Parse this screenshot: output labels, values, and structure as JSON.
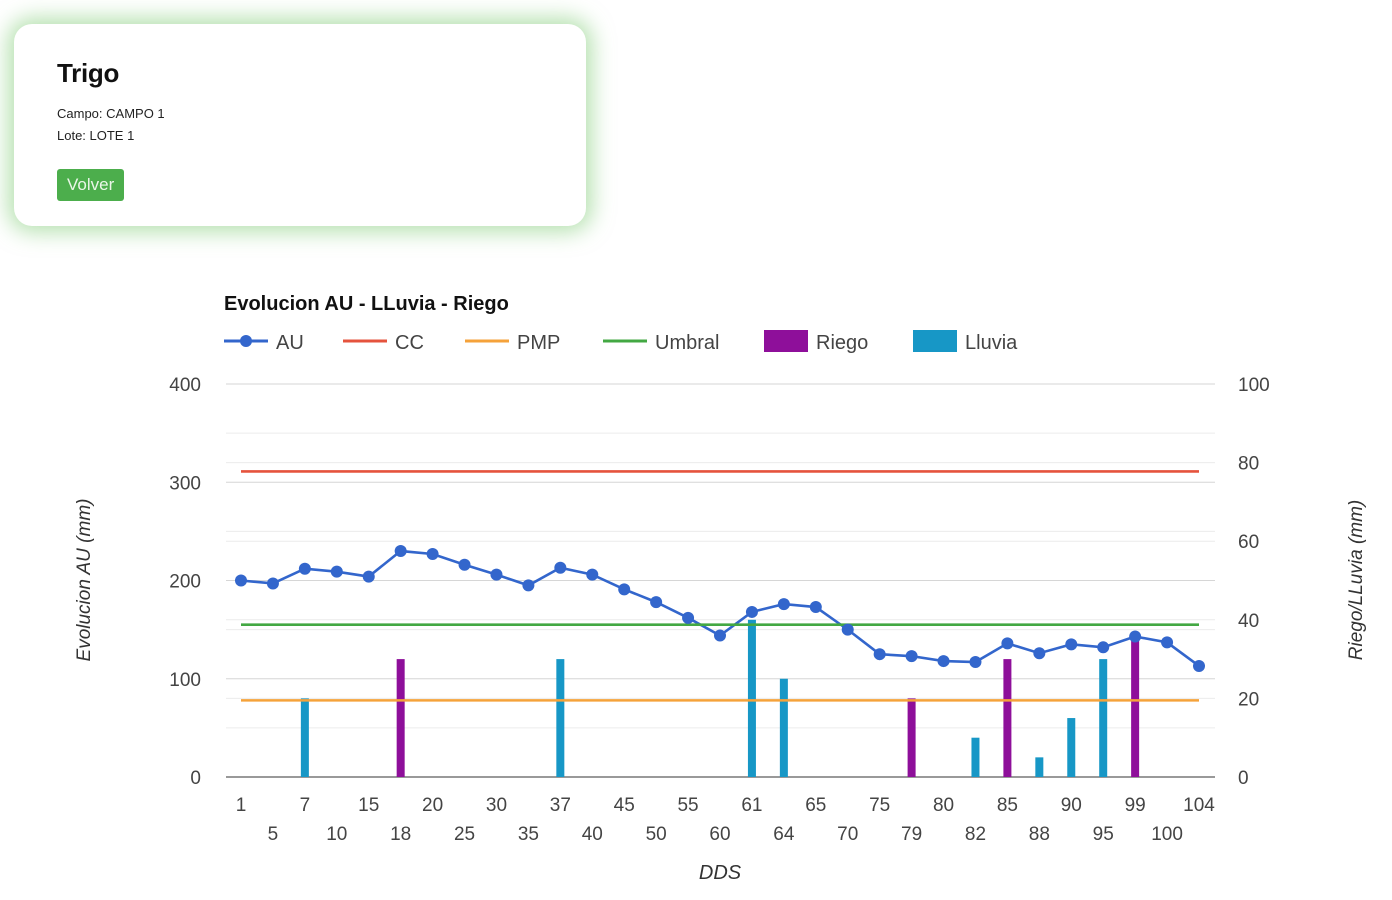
{
  "card": {
    "title": "Trigo",
    "campo": "Campo: CAMPO 1",
    "lote": "Lote: LOTE 1",
    "button_label": "Volver"
  },
  "chart_data": {
    "type": "line",
    "title": "Evolucion AU - LLuvia - Riego",
    "xlabel": "DDS",
    "ylabel_left": "Evolucion AU (mm)",
    "ylabel_right": "Riego/LLuvia (mm)",
    "ylim_left": [
      0,
      400
    ],
    "ylim_right": [
      0,
      100
    ],
    "yticks_left": [
      0,
      100,
      200,
      300,
      400
    ],
    "yticks_right": [
      0,
      20,
      40,
      60,
      80,
      100
    ],
    "grid": true,
    "legend_position": "top-left",
    "categories": [
      "1",
      "5",
      "7",
      "10",
      "15",
      "18",
      "20",
      "25",
      "30",
      "35",
      "37",
      "40",
      "45",
      "50",
      "55",
      "60",
      "61",
      "64",
      "65",
      "70",
      "75",
      "79",
      "80",
      "82",
      "85",
      "88",
      "90",
      "95",
      "99",
      "100",
      "104"
    ],
    "series": [
      {
        "name": "AU",
        "kind": "line-markers",
        "axis": "left",
        "color": "#3366cc",
        "values": [
          200,
          197,
          212,
          209,
          204,
          230,
          227,
          216,
          206,
          195,
          213,
          206,
          191,
          178,
          162,
          144,
          168,
          176,
          173,
          150,
          125,
          123,
          118,
          117,
          136,
          126,
          135,
          132,
          143,
          137,
          113
        ]
      },
      {
        "name": "CC",
        "kind": "line",
        "axis": "left",
        "color": "#e5533d",
        "values": [
          311,
          311,
          311,
          311,
          311,
          311,
          311,
          311,
          311,
          311,
          311,
          311,
          311,
          311,
          311,
          311,
          311,
          311,
          311,
          311,
          311,
          311,
          311,
          311,
          311,
          311,
          311,
          311,
          311,
          311,
          311
        ]
      },
      {
        "name": "PMP",
        "kind": "line",
        "axis": "left",
        "color": "#f5a23a",
        "values": [
          78,
          78,
          78,
          78,
          78,
          78,
          78,
          78,
          78,
          78,
          78,
          78,
          78,
          78,
          78,
          78,
          78,
          78,
          78,
          78,
          78,
          78,
          78,
          78,
          78,
          78,
          78,
          78,
          78,
          78,
          78
        ]
      },
      {
        "name": "Umbral",
        "kind": "line",
        "axis": "left",
        "color": "#43a843",
        "values": [
          155,
          155,
          155,
          155,
          155,
          155,
          155,
          155,
          155,
          155,
          155,
          155,
          155,
          155,
          155,
          155,
          155,
          155,
          155,
          155,
          155,
          155,
          155,
          155,
          155,
          155,
          155,
          155,
          155,
          155,
          155
        ]
      },
      {
        "name": "Riego",
        "kind": "bar",
        "axis": "right",
        "color": "#8e0f9a",
        "values": [
          0,
          0,
          0,
          0,
          0,
          30,
          0,
          0,
          0,
          0,
          0,
          0,
          0,
          0,
          0,
          0,
          0,
          0,
          0,
          0,
          0,
          20,
          0,
          0,
          30,
          0,
          0,
          0,
          35,
          0,
          0
        ]
      },
      {
        "name": "Lluvia",
        "kind": "bar",
        "axis": "right",
        "color": "#1797c6",
        "values": [
          0,
          0,
          20,
          0,
          0,
          0,
          0,
          0,
          0,
          0,
          30,
          0,
          0,
          0,
          0,
          0,
          40,
          25,
          0,
          0,
          0,
          0,
          0,
          10,
          0,
          5,
          15,
          30,
          0,
          0,
          0
        ]
      }
    ]
  }
}
